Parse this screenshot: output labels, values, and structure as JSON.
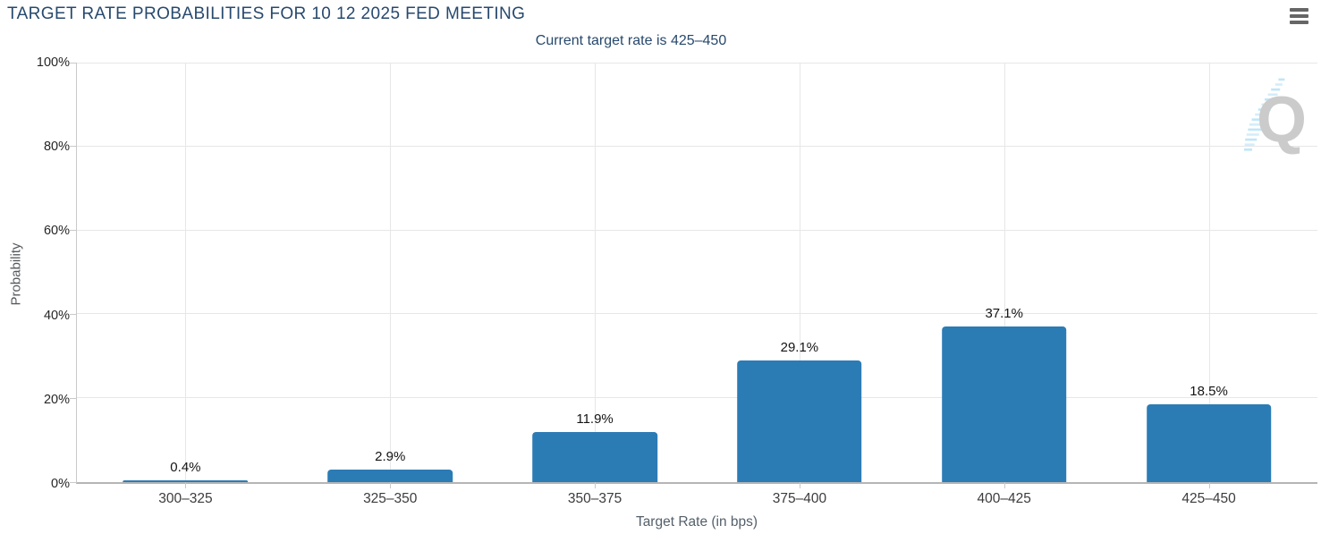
{
  "header": {
    "title": "TARGET RATE PROBABILITIES FOR 10 12 2025 FED MEETING",
    "subtitle": "Current target rate is 425–450",
    "menu_icon": "hamburger-menu-icon"
  },
  "colors": {
    "bar": "#2b7cb5",
    "title_text": "#27496d",
    "grid": "#e7e7e7",
    "axis_line": "#c9c9c9",
    "watermark_gray": "#cbcbcb",
    "watermark_blue": "#b5e2f7"
  },
  "watermark_letter": "Q",
  "chart_data": {
    "type": "bar",
    "title": "TARGET RATE PROBABILITIES FOR 10 12 2025 FED MEETING",
    "subtitle": "Current target rate is 425–450",
    "categories": [
      "300–325",
      "325–350",
      "350–375",
      "375–400",
      "400–425",
      "425–450"
    ],
    "values": [
      0.4,
      2.9,
      11.9,
      29.1,
      37.1,
      18.5
    ],
    "value_labels": [
      "0.4%",
      "2.9%",
      "11.9%",
      "29.1%",
      "37.1%",
      "18.5%"
    ],
    "xlabel": "Target Rate (in bps)",
    "ylabel": "Probability",
    "ylim": [
      0,
      100
    ],
    "yticks": [
      0,
      20,
      40,
      60,
      80,
      100
    ],
    "ytick_labels": [
      "0%",
      "20%",
      "40%",
      "60%",
      "80%",
      "100%"
    ],
    "grid": true,
    "legend": false,
    "bar_color": "#2b7cb5"
  }
}
